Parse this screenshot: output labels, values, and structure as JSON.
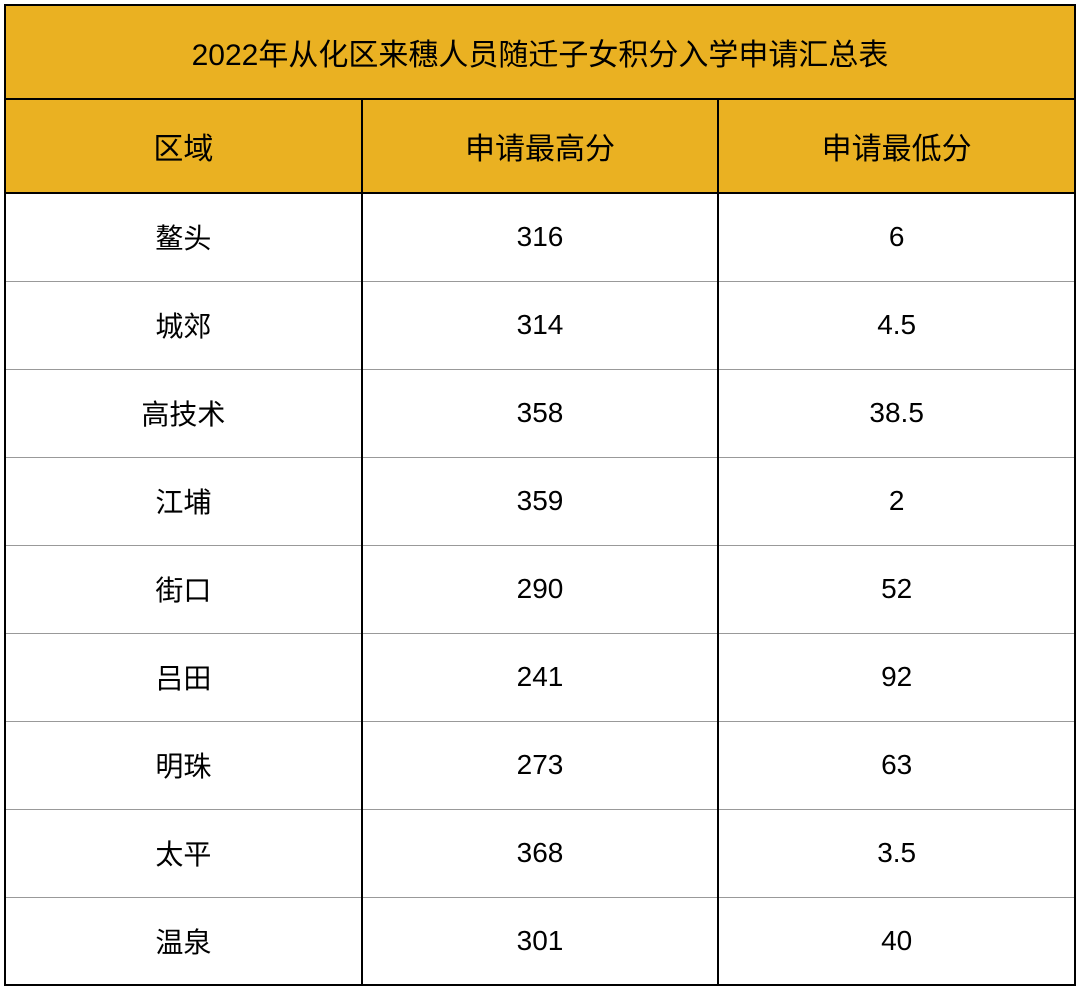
{
  "table": {
    "type": "table",
    "title": "2022年从化区来穗人员随迁子女积分入学申请汇总表",
    "columns": [
      "区域",
      "申请最高分",
      "申请最低分"
    ],
    "column_widths": [
      "33.33%",
      "33.33%",
      "33.33%"
    ],
    "column_alignment": [
      "center",
      "center",
      "center"
    ],
    "rows": [
      [
        "鳌头",
        "316",
        "6"
      ],
      [
        "城郊",
        "314",
        "4.5"
      ],
      [
        "高技术",
        "358",
        "38.5"
      ],
      [
        "江埔",
        "359",
        "2"
      ],
      [
        "街口",
        "290",
        "52"
      ],
      [
        "吕田",
        "241",
        "92"
      ],
      [
        "明珠",
        "273",
        "63"
      ],
      [
        "太平",
        "368",
        "3.5"
      ],
      [
        "温泉",
        "301",
        "40"
      ]
    ],
    "header_background": "#eab122",
    "header_text_color": "#000000",
    "body_background": "#ffffff",
    "body_text_color": "#000000",
    "border_color": "#000000",
    "row_separator_color": "#999999",
    "title_fontsize": 30,
    "header_fontsize": 30,
    "body_fontsize": 28,
    "title_row_height": 94,
    "header_row_height": 94,
    "data_row_height": 88
  }
}
